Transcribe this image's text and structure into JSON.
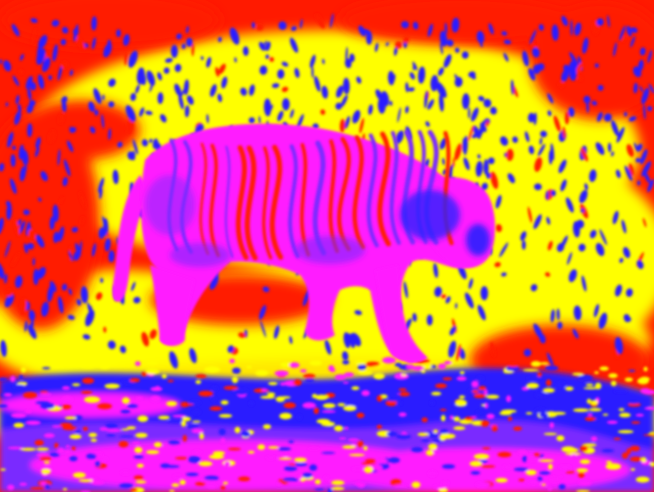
{
  "image": {
    "subject": "tiger",
    "palette": {
      "red": "#ff1a00",
      "yellow": "#ffff00",
      "blue": "#2a1fff",
      "magenta": "#ff1aff",
      "violet": "#7a2aff"
    }
  }
}
